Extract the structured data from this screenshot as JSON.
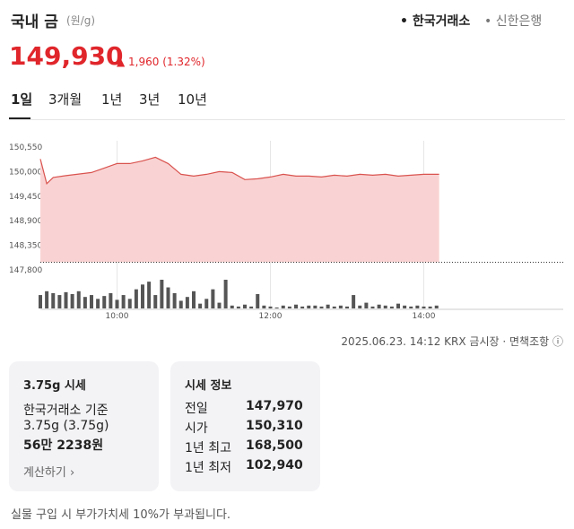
{
  "header": {
    "title": "국내 금",
    "unit": "(원/g)",
    "sources": [
      "한국거래소",
      "신한은행"
    ]
  },
  "price": {
    "value": "149,930",
    "change": "1,960",
    "change_pct": "(1.32%)"
  },
  "tabs": [
    "1일",
    "3개월",
    "1년",
    "3년",
    "10년"
  ],
  "chart_data": {
    "type": "area",
    "color": "#d9534f",
    "fill": "#f9d3d3",
    "x": [
      "09:00",
      "09:05",
      "09:10",
      "09:20",
      "09:40",
      "09:50",
      "10:00",
      "10:10",
      "10:20",
      "10:30",
      "10:40",
      "10:50",
      "11:00",
      "11:10",
      "11:20",
      "11:30",
      "11:40",
      "11:50",
      "12:00",
      "12:10",
      "12:20",
      "12:30",
      "12:40",
      "12:50",
      "13:00",
      "13:10",
      "13:20",
      "13:30",
      "13:40",
      "13:50",
      "14:00",
      "14:12"
    ],
    "values": [
      150280,
      149730,
      149870,
      149910,
      149980,
      150080,
      150180,
      150180,
      150240,
      150320,
      150180,
      149940,
      149900,
      149940,
      150000,
      149980,
      149820,
      149840,
      149880,
      149940,
      149900,
      149900,
      149880,
      149920,
      149900,
      149940,
      149920,
      149940,
      149900,
      149920,
      149940,
      149940
    ],
    "xlim": [
      "09:00",
      "14:12"
    ],
    "xticks": [
      "10:00",
      "12:00",
      "14:00"
    ],
    "ylim": [
      147800,
      150690
    ],
    "yticks": [
      {
        "value": 150550,
        "label": "150,550"
      },
      {
        "value": 150000,
        "label": "150,000"
      },
      {
        "value": 149450,
        "label": "149,450"
      },
      {
        "value": 148900,
        "label": "148,900"
      },
      {
        "value": 148350,
        "label": "148,350"
      },
      {
        "value": 147800,
        "label": "147,800"
      }
    ],
    "reference_line": 147970,
    "volume": {
      "color": "#555555",
      "x": [
        "09:00",
        "09:05",
        "09:10",
        "09:15",
        "09:20",
        "09:25",
        "09:30",
        "09:35",
        "09:40",
        "09:45",
        "09:50",
        "09:55",
        "10:00",
        "10:05",
        "10:10",
        "10:15",
        "10:20",
        "10:25",
        "10:30",
        "10:35",
        "10:40",
        "10:45",
        "10:50",
        "10:55",
        "11:00",
        "11:05",
        "11:10",
        "11:15",
        "11:20",
        "11:25",
        "11:30",
        "11:35",
        "11:40",
        "11:45",
        "11:50",
        "11:55",
        "12:00",
        "12:05",
        "12:10",
        "12:15",
        "12:20",
        "12:25",
        "12:30",
        "12:35",
        "12:40",
        "12:45",
        "12:50",
        "12:55",
        "13:00",
        "13:05",
        "13:10",
        "13:15",
        "13:20",
        "13:25",
        "13:30",
        "13:35",
        "13:40",
        "13:45",
        "13:50",
        "13:55",
        "14:00",
        "14:05",
        "14:10"
      ],
      "values": [
        14,
        18,
        16,
        14,
        17,
        15,
        18,
        12,
        14,
        10,
        13,
        16,
        9,
        14,
        10,
        20,
        25,
        28,
        14,
        30,
        22,
        16,
        8,
        12,
        18,
        5,
        10,
        20,
        6,
        30,
        3,
        2,
        4,
        2,
        15,
        3,
        2,
        1,
        3,
        2,
        4,
        2,
        3,
        3,
        2,
        4,
        2,
        3,
        2,
        14,
        3,
        6,
        2,
        4,
        3,
        2,
        5,
        3,
        2,
        3,
        2,
        2,
        3
      ]
    }
  },
  "footer": {
    "timestamp": "2025.06.23. 14:12",
    "market": "KRX 금시장",
    "disclaimer": "면책조항"
  },
  "cards": [
    {
      "title": "3.75g 시세",
      "lines": [
        "한국거래소 기준",
        "3.75g (3.75g)",
        "56만 2238원"
      ],
      "link": "계산하기"
    },
    {
      "title": "시세 정보",
      "rows": [
        [
          "전일",
          "147,970"
        ],
        [
          "시가",
          "150,310"
        ],
        [
          "1년 최고",
          "168,500"
        ],
        [
          "1년 최저",
          "102,940"
        ]
      ]
    }
  ],
  "note": "실물 구입 시 부가가치세 10%가 부과됩니다."
}
